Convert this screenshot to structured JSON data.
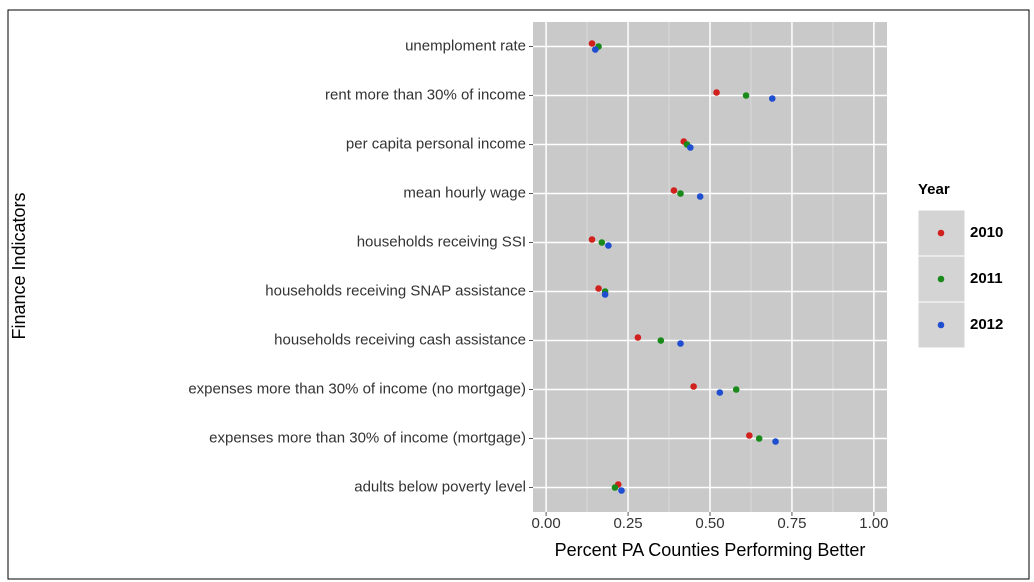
{
  "chart_data": {
    "type": "scatter",
    "x_label": "Percent PA Counties Performing Better",
    "y_label": "Finance Indicators",
    "legend_title": "Year",
    "categories": [
      "unemploment rate",
      "rent more than 30% of income",
      "per capita personal income",
      "mean hourly wage",
      "households receiving SSI",
      "households receiving SNAP assistance",
      "households receiving cash assistance",
      "expenses more than 30% of income (no mortgage)",
      "expenses more than 30% of income (mortgage)",
      "adults below poverty level"
    ],
    "series": [
      {
        "name": "2010",
        "color": "#d0211c",
        "values": [
          0.14,
          0.52,
          0.42,
          0.39,
          0.14,
          0.16,
          0.28,
          0.45,
          0.62,
          0.22
        ]
      },
      {
        "name": "2011",
        "color": "#1a8a1a",
        "values": [
          0.16,
          0.61,
          0.43,
          0.41,
          0.17,
          0.18,
          0.35,
          0.58,
          0.65,
          0.21
        ]
      },
      {
        "name": "2012",
        "color": "#1f4fd0",
        "values": [
          0.15,
          0.69,
          0.44,
          0.47,
          0.19,
          0.18,
          0.41,
          0.53,
          0.7,
          0.23
        ]
      }
    ],
    "xlim": [
      -0.04,
      1.04
    ],
    "xticks": [
      {
        "value": 0,
        "label": "0.00"
      },
      {
        "value": 0.25,
        "label": "0.25"
      },
      {
        "value": 0.5,
        "label": "0.50"
      },
      {
        "value": 0.75,
        "label": "0.75"
      },
      {
        "value": 1,
        "label": "1.00"
      }
    ],
    "grid": true,
    "legend_position": "right"
  }
}
